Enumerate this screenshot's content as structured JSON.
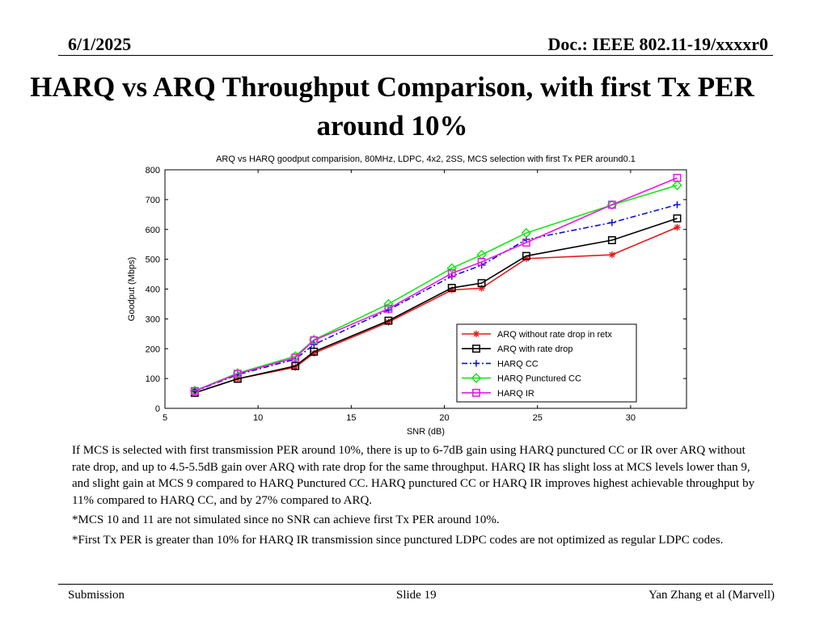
{
  "header": {
    "date": "6/1/2025",
    "doc": "Doc.: IEEE 802.11-19/xxxxr0"
  },
  "slide_title": "HARQ vs ARQ Throughput Comparison, with first Tx PER around 10%",
  "chart_data": {
    "type": "line",
    "title": "ARQ vs HARQ goodput comparision, 80MHz, LDPC, 4x2, 2SS, MCS selection with first Tx PER around0.1",
    "xlabel": "SNR (dB)",
    "ylabel": "Goodput (Mbps)",
    "xlim": [
      5,
      33
    ],
    "ylim": [
      0,
      800
    ],
    "xticks": [
      5,
      10,
      15,
      20,
      25,
      30
    ],
    "yticks": [
      0,
      100,
      200,
      300,
      400,
      500,
      600,
      700,
      800
    ],
    "legend_position": "lower-right",
    "series": [
      {
        "name": "ARQ without rate drop in retx",
        "color": "#e8191a",
        "marker": "star",
        "dash": "solid",
        "points": [
          [
            6.6,
            52
          ],
          [
            8.9,
            99
          ],
          [
            12,
            138
          ],
          [
            13,
            185
          ],
          [
            17,
            289
          ],
          [
            20.4,
            397
          ],
          [
            22,
            403
          ],
          [
            24.4,
            502
          ],
          [
            29,
            515
          ],
          [
            32.5,
            607
          ]
        ]
      },
      {
        "name": "ARQ with rate drop",
        "color": "#000000",
        "marker": "square",
        "dash": "solid",
        "points": [
          [
            6.6,
            52
          ],
          [
            8.9,
            99
          ],
          [
            12,
            142
          ],
          [
            13,
            190
          ],
          [
            17,
            294
          ],
          [
            20.4,
            404
          ],
          [
            22,
            420
          ],
          [
            24.4,
            511
          ],
          [
            29,
            564
          ],
          [
            32.5,
            637
          ]
        ]
      },
      {
        "name": "HARQ CC",
        "color": "#1010d0",
        "marker": "plus",
        "dash": "dashdot",
        "points": [
          [
            6.6,
            57
          ],
          [
            8.9,
            113
          ],
          [
            12,
            165
          ],
          [
            13,
            214
          ],
          [
            17,
            330
          ],
          [
            20.4,
            443
          ],
          [
            22,
            480
          ],
          [
            24.4,
            566
          ],
          [
            29,
            623
          ],
          [
            32.5,
            683
          ]
        ]
      },
      {
        "name": "HARQ Punctured CC",
        "color": "#19e619",
        "marker": "diamond",
        "dash": "solid",
        "points": [
          [
            6.6,
            59
          ],
          [
            8.9,
            118
          ],
          [
            12,
            175
          ],
          [
            13,
            230
          ],
          [
            17,
            350
          ],
          [
            20.4,
            470
          ],
          [
            22,
            515
          ],
          [
            24.4,
            588
          ],
          [
            29,
            682
          ],
          [
            32.5,
            748
          ]
        ]
      },
      {
        "name": "HARQ IR",
        "color": "#e619e6",
        "marker": "square",
        "dash": "solid",
        "points": [
          [
            6.6,
            58
          ],
          [
            8.9,
            116
          ],
          [
            12,
            170
          ],
          [
            13,
            228
          ],
          [
            17,
            334
          ],
          [
            20.4,
            453
          ],
          [
            22,
            491
          ],
          [
            24.4,
            556
          ],
          [
            29,
            683
          ],
          [
            32.5,
            773
          ]
        ]
      }
    ]
  },
  "notes": [
    "If MCS is selected with first transmission PER around 10%, there is up to 6-7dB gain using HARQ punctured CC or IR over ARQ without rate drop, and up to 4.5-5.5dB gain over ARQ with rate drop for the same throughput. HARQ IR has slight loss at MCS levels lower than 9, and slight gain at MCS 9 compared to HARQ Punctured CC. HARQ punctured CC or HARQ IR improves highest achievable throughput by 11% compared to HARQ CC, and by 27% compared to ARQ.",
    "*MCS 10 and 11 are not simulated since no SNR can achieve first Tx PER around 10%.",
    "*First Tx PER is greater than 10% for HARQ IR transmission since punctured LDPC codes are not optimized as regular LDPC codes."
  ],
  "footer": {
    "left": "Submission",
    "center": "Slide 19",
    "right": "Yan Zhang et al (Marvell)"
  }
}
